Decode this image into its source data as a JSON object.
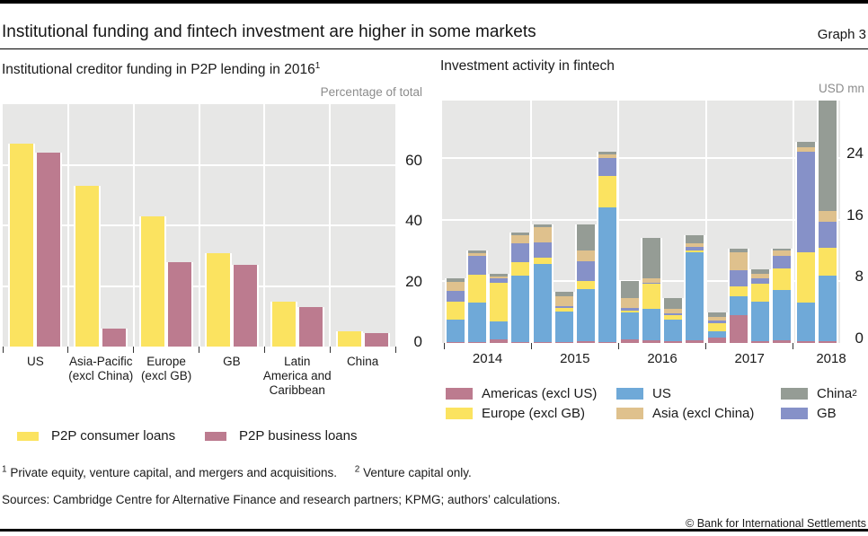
{
  "header": {
    "title": "Institutional funding and fintech investment are higher in some markets",
    "graph_label": "Graph 3"
  },
  "left_panel": {
    "title": "Institutional creditor funding in P2P lending in 2016",
    "title_sup": "1",
    "unit": "Percentage of total",
    "legend": [
      {
        "label": "P2P consumer loans",
        "color": "#fbe360"
      },
      {
        "label": "P2P business loans",
        "color": "#bc7b8f"
      }
    ]
  },
  "right_panel": {
    "title": "Investment activity in fintech",
    "unit": "USD mn",
    "legend": [
      {
        "label": "Americas (excl US)",
        "sup": "",
        "color": "#bc7b8f"
      },
      {
        "label": "US",
        "sup": "",
        "color": "#6fa9d8"
      },
      {
        "label": "China",
        "sup": "2",
        "color": "#959c95"
      },
      {
        "label": "Europe (excl GB)",
        "sup": "",
        "color": "#fbe360"
      },
      {
        "label": "Asia (excl China)",
        "sup": "",
        "color": "#dfc18d"
      },
      {
        "label": "GB",
        "sup": "",
        "color": "#8691c8"
      }
    ]
  },
  "chart_data": [
    {
      "type": "bar",
      "title": "Institutional creditor funding in P2P lending in 2016",
      "ylabel": "Percentage of total",
      "xlabel": "",
      "categories": [
        "US",
        "Asia-Pacific (excl China)",
        "Europe (excl GB)",
        "GB",
        "Latin America and Caribbean",
        "China"
      ],
      "category_lines": [
        [
          "US"
        ],
        [
          "Asia-Pacific",
          "(excl China)"
        ],
        [
          "Europe",
          "(excl GB)"
        ],
        [
          "GB"
        ],
        [
          "Latin",
          "America and",
          "Caribbean"
        ],
        [
          "China"
        ]
      ],
      "series": [
        {
          "name": "P2P consumer loans",
          "color": "#fbe360",
          "values": [
            67,
            53,
            43,
            31,
            15,
            5
          ]
        },
        {
          "name": "P2P business loans",
          "color": "#bc7b8f",
          "values": [
            64,
            6,
            28,
            27,
            13,
            4.5
          ]
        }
      ],
      "ylim": [
        0,
        80
      ],
      "yticks": [
        0,
        20,
        40,
        60
      ],
      "grid": "on",
      "legend_position": "bottom"
    },
    {
      "type": "stacked-bar",
      "title": "Investment activity in fintech",
      "ylabel": "USD mn",
      "xlabel": "",
      "x": [
        "2014 Q1",
        "2014 Q2",
        "2014 Q3",
        "2014 Q4",
        "2015 Q1",
        "2015 Q2",
        "2015 Q3",
        "2015 Q4",
        "2016 Q1",
        "2016 Q2",
        "2016 Q3",
        "2016 Q4",
        "2017 Q1",
        "2017 Q2",
        "2017 Q3",
        "2017 Q4",
        "2018 Q1",
        "2018 Q2"
      ],
      "group_labels": [
        "2014",
        "2015",
        "2016",
        "2017",
        "2018"
      ],
      "group_sizes": [
        4,
        4,
        4,
        4,
        2
      ],
      "stack_order_note": "series listed bottom to top",
      "series": [
        {
          "name": "Americas (excl US)",
          "color": "#bc7b8f",
          "values": [
            0.1,
            0.1,
            0.5,
            0.1,
            0.1,
            0.1,
            0.2,
            0.1,
            0.5,
            0.3,
            0.2,
            0.3,
            0.7,
            3.6,
            0.2,
            0.3,
            0.2,
            0.2
          ]
        },
        {
          "name": "US",
          "color": "#6fa9d8",
          "values": [
            2.9,
            5.2,
            2.3,
            8.7,
            10.2,
            4.0,
            6.8,
            17.5,
            3.5,
            4.1,
            2.8,
            11.5,
            0.8,
            2.5,
            5.2,
            6.6,
            5.1,
            8.5
          ]
        },
        {
          "name": "Europe (excl GB)",
          "color": "#fbe360",
          "values": [
            2.4,
            3.6,
            5.0,
            1.7,
            0.8,
            0.4,
            1.0,
            4.1,
            0.2,
            3.3,
            0.6,
            0.2,
            1.1,
            1.2,
            2.3,
            2.8,
            6.5,
            3.7
          ]
        },
        {
          "name": "GB",
          "color": "#8691c8",
          "values": [
            1.4,
            2.4,
            0.6,
            2.5,
            2.0,
            0.3,
            2.6,
            2.3,
            0.4,
            0.1,
            0.2,
            0.5,
            0.3,
            2.1,
            0.7,
            1.6,
            13.0,
            3.3
          ]
        },
        {
          "name": "Asia (excl China)",
          "color": "#dfc18d",
          "values": [
            1.1,
            0.4,
            0.2,
            1.0,
            2.0,
            1.3,
            1.4,
            0.5,
            1.2,
            0.6,
            0.6,
            0.5,
            0.5,
            2.4,
            0.6,
            0.7,
            0.6,
            1.4
          ]
        },
        {
          "name": "China",
          "color": "#959c95",
          "values": [
            0.5,
            0.3,
            0.4,
            0.4,
            0.3,
            0.5,
            3.4,
            0.4,
            2.2,
            5.2,
            1.4,
            1.0,
            0.6,
            0.4,
            0.6,
            0.3,
            0.7,
            14.4
          ]
        }
      ],
      "ylim": [
        0,
        31.5
      ],
      "yticks": [
        0,
        8,
        16,
        24
      ],
      "grid": "on",
      "legend_position": "bottom"
    }
  ],
  "footnotes": [
    {
      "sup": "1",
      "text": "Private equity, venture capital, and mergers and acquisitions."
    },
    {
      "sup": "2",
      "text": "Venture capital only."
    }
  ],
  "sources": "Sources: Cambridge Centre for Alternative Finance and research partners; KPMG; authors’ calculations.",
  "copyright": "© Bank for International Settlements"
}
